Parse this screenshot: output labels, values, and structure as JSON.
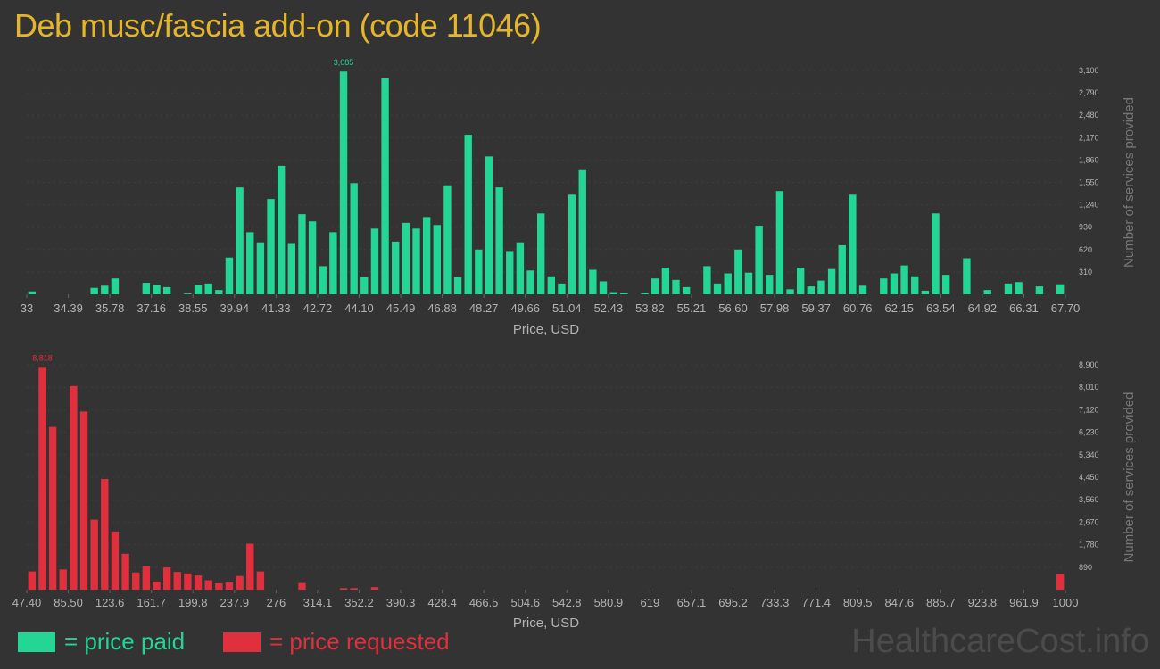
{
  "title": "Deb musc/fascia add-on (code 11046)",
  "colors": {
    "paid": "#23d696",
    "requested": "#e0303d",
    "title": "#e5b52a",
    "axis_text": "#b3b3b3"
  },
  "legend": {
    "paid": "= price paid",
    "requested": "= price requested"
  },
  "watermark": "HealthcareCost.info",
  "chart_data": [
    {
      "type": "bar",
      "name": "price paid",
      "xlabel": "Price, USD",
      "ylabel": "Number of services provided",
      "ylim": [
        0,
        3100
      ],
      "yticks": [
        "310",
        "620",
        "930",
        "1,240",
        "1,550",
        "1,860",
        "2,170",
        "2,480",
        "2,790",
        "3,100"
      ],
      "ytick_values": [
        310,
        620,
        930,
        1240,
        1550,
        1860,
        2170,
        2480,
        2790,
        3100
      ],
      "xticks": [
        "33",
        "34.39",
        "35.78",
        "37.16",
        "38.55",
        "39.94",
        "41.33",
        "42.72",
        "44.10",
        "45.49",
        "46.88",
        "48.27",
        "49.66",
        "51.04",
        "52.43",
        "53.82",
        "55.21",
        "56.60",
        "57.98",
        "59.37",
        "60.76",
        "62.15",
        "63.54",
        "64.92",
        "66.31",
        "67.70"
      ],
      "peak_label": "3,085",
      "peak_index": 30,
      "values": [
        40,
        0,
        0,
        0,
        0,
        0,
        90,
        120,
        220,
        0,
        0,
        160,
        130,
        100,
        0,
        10,
        130,
        150,
        60,
        510,
        1480,
        860,
        720,
        1320,
        1780,
        710,
        1110,
        1010,
        390,
        860,
        3085,
        1540,
        240,
        910,
        2990,
        730,
        990,
        910,
        1070,
        960,
        1510,
        240,
        2210,
        620,
        1910,
        1480,
        600,
        720,
        330,
        1120,
        250,
        150,
        1380,
        1720,
        340,
        180,
        30,
        20,
        0,
        20,
        220,
        370,
        200,
        100,
        0,
        390,
        150,
        290,
        620,
        300,
        950,
        270,
        1430,
        70,
        370,
        110,
        190,
        350,
        680,
        1380,
        120,
        0,
        220,
        290,
        400,
        250,
        50,
        1120,
        270,
        0,
        500,
        0,
        60,
        0,
        150,
        170,
        0,
        110,
        0,
        140
      ]
    },
    {
      "type": "bar",
      "name": "price requested",
      "xlabel": "Price, USD",
      "ylabel": "Number of services provided",
      "ylim": [
        0,
        8900
      ],
      "yticks": [
        "890",
        "1,780",
        "2,670",
        "3,560",
        "4,450",
        "5,340",
        "6,230",
        "7,120",
        "8,010",
        "8,900"
      ],
      "ytick_values": [
        890,
        1780,
        2670,
        3560,
        4450,
        5340,
        6230,
        7120,
        8010,
        8900
      ],
      "xticks": [
        "47.40",
        "85.50",
        "123.6",
        "161.7",
        "199.8",
        "237.9",
        "276",
        "314.1",
        "352.2",
        "390.3",
        "428.4",
        "466.5",
        "504.6",
        "542.8",
        "580.9",
        "619",
        "657.1",
        "695.2",
        "733.3",
        "771.4",
        "809.5",
        "847.6",
        "885.7",
        "923.8",
        "961.9",
        "1000"
      ],
      "peak_label": "8,818",
      "peak_index": 1,
      "values": [
        720,
        8818,
        6440,
        800,
        8060,
        7050,
        2770,
        4380,
        2300,
        1420,
        680,
        920,
        320,
        880,
        700,
        640,
        560,
        370,
        250,
        290,
        540,
        1820,
        720,
        0,
        0,
        0,
        260,
        0,
        0,
        0,
        60,
        60,
        0,
        100,
        0,
        0,
        0,
        0,
        0,
        0,
        0,
        0,
        0,
        0,
        0,
        0,
        0,
        0,
        0,
        0,
        0,
        0,
        0,
        0,
        0,
        0,
        0,
        0,
        0,
        0,
        0,
        0,
        0,
        0,
        0,
        0,
        0,
        0,
        0,
        0,
        0,
        0,
        0,
        0,
        0,
        0,
        0,
        0,
        0,
        0,
        0,
        0,
        0,
        0,
        0,
        0,
        0,
        0,
        0,
        0,
        0,
        0,
        0,
        0,
        0,
        0,
        0,
        0,
        0,
        620
      ]
    }
  ]
}
